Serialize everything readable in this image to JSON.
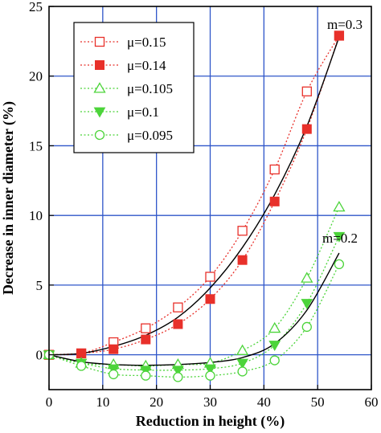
{
  "chart_data": {
    "type": "scatter",
    "title": "",
    "xlabel": "Reduction in height (%)",
    "ylabel": "Decrease in inner diameter (%)",
    "xlim": [
      0,
      60
    ],
    "ylim": [
      -2.5,
      25
    ],
    "xticks": [
      0,
      10,
      20,
      30,
      40,
      50,
      60
    ],
    "yticks": [
      0,
      5,
      10,
      15,
      20,
      25
    ],
    "grid": true,
    "legend_position": "top-left",
    "series": [
      {
        "name": "μ=0.15",
        "color": "#e8302a",
        "marker": "square-open",
        "x": [
          0,
          6,
          12,
          18,
          24,
          30,
          36,
          42,
          48,
          54
        ],
        "y": [
          0,
          0.1,
          0.9,
          1.9,
          3.4,
          5.6,
          8.9,
          13.3,
          18.9,
          22.9
        ]
      },
      {
        "name": "μ=0.14",
        "color": "#e8302a",
        "marker": "square-filled",
        "x": [
          0,
          6,
          12,
          18,
          24,
          30,
          36,
          42,
          48,
          54
        ],
        "y": [
          0,
          0.1,
          0.4,
          1.1,
          2.2,
          4.0,
          6.8,
          11.0,
          16.2,
          22.9
        ]
      },
      {
        "name": "μ=0.105",
        "color": "#4cd43a",
        "marker": "triangle-up-open",
        "x": [
          0,
          6,
          12,
          18,
          24,
          30,
          36,
          42,
          48,
          54
        ],
        "y": [
          0,
          -0.6,
          -0.7,
          -0.8,
          -0.7,
          -0.6,
          0.3,
          1.9,
          5.5,
          10.6
        ]
      },
      {
        "name": "μ=0.1",
        "color": "#4cd43a",
        "marker": "triangle-down-filled",
        "x": [
          0,
          6,
          12,
          18,
          24,
          30,
          36,
          42,
          48,
          54
        ],
        "y": [
          0,
          -0.6,
          -1.0,
          -1.1,
          -1.1,
          -1.0,
          -0.6,
          0.7,
          3.7,
          8.5
        ]
      },
      {
        "name": "μ=0.095",
        "color": "#4cd43a",
        "marker": "circle-open",
        "x": [
          0,
          6,
          12,
          18,
          24,
          30,
          36,
          42,
          48,
          54
        ],
        "y": [
          0,
          -0.8,
          -1.4,
          -1.5,
          -1.6,
          -1.5,
          -1.2,
          -0.4,
          2.0,
          6.5
        ]
      }
    ],
    "fit_curves": [
      {
        "label": "m=0.3",
        "x": [
          0,
          6,
          12,
          18,
          24,
          30,
          36,
          42,
          48,
          54
        ],
        "y": [
          0,
          0.1,
          0.6,
          1.4,
          2.7,
          4.8,
          7.7,
          11.5,
          16.4,
          22.8
        ]
      },
      {
        "label": "m=0.2",
        "x": [
          0,
          6,
          12,
          18,
          24,
          30,
          36,
          42,
          48,
          54
        ],
        "y": [
          0,
          -0.5,
          -0.7,
          -0.75,
          -0.7,
          -0.55,
          -0.2,
          0.8,
          3.2,
          7.3
        ]
      }
    ]
  }
}
